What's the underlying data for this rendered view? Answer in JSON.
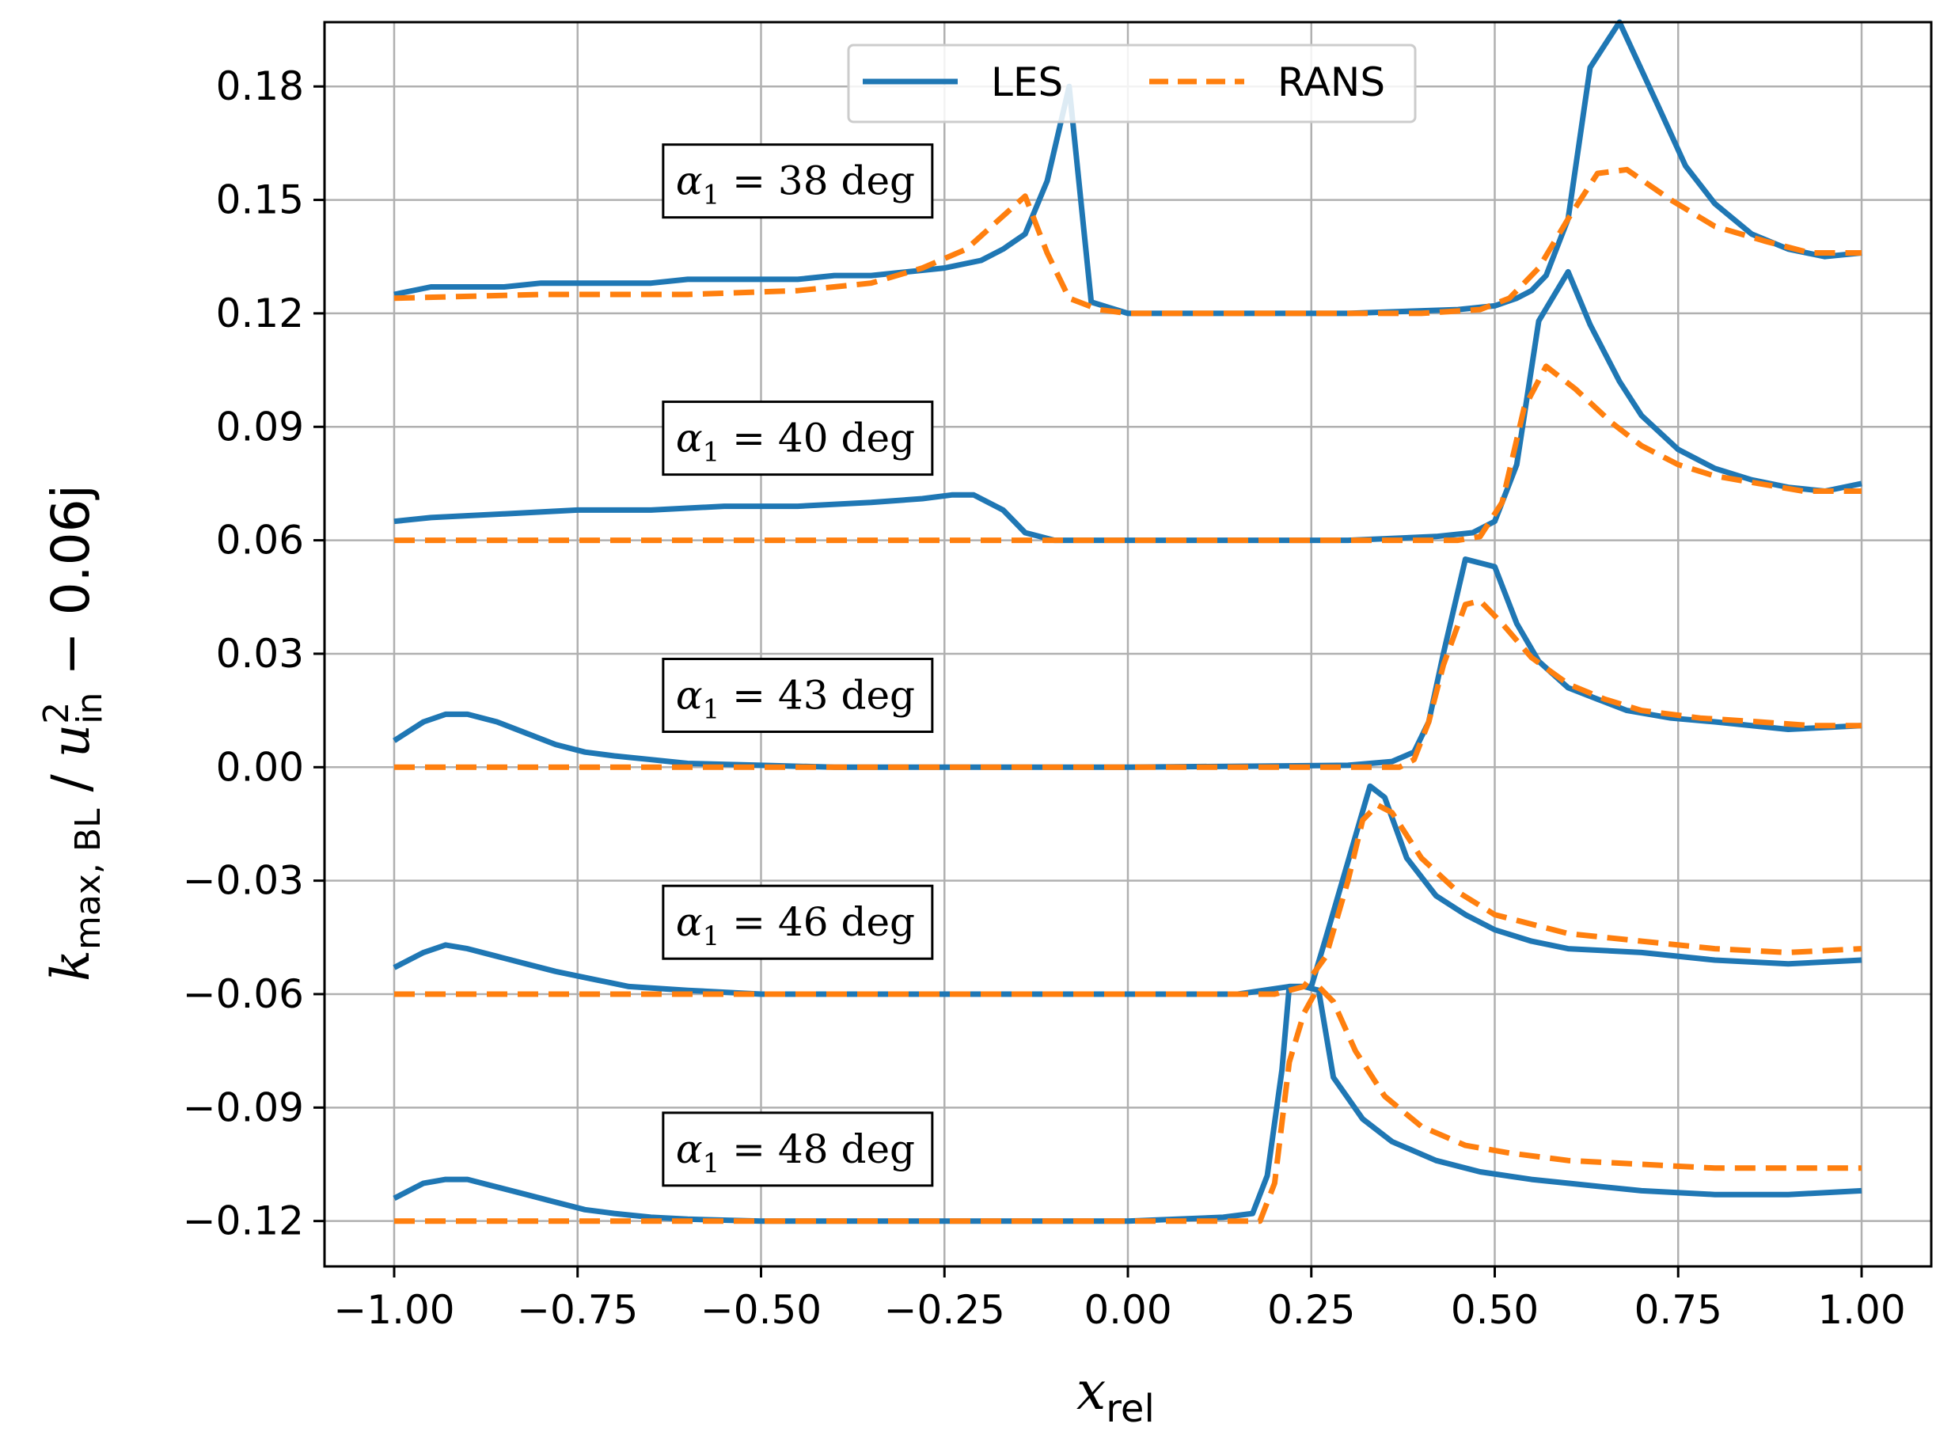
{
  "chart_data": {
    "type": "line",
    "x_axis": {
      "label_main": "x",
      "label_sub": "rel",
      "range": [
        -1.0,
        1.0
      ],
      "ticks": [
        -1.0,
        -0.75,
        -0.5,
        -0.25,
        0.0,
        0.25,
        0.5,
        0.75,
        1.0
      ],
      "tick_labels": [
        "−1.00",
        "−0.75",
        "−0.50",
        "−0.25",
        "0.00",
        "0.25",
        "0.50",
        "0.75",
        "1.00"
      ]
    },
    "y_axis": {
      "label_k": "k",
      "label_k_sub": "max, BL",
      "label_slash": " / ",
      "label_u": "u",
      "label_u_sup": "2",
      "label_u_sub": "in",
      "label_tail": " − 0.06j",
      "range": [
        -0.132,
        0.197
      ],
      "ticks": [
        -0.12,
        -0.09,
        -0.06,
        -0.03,
        0.0,
        0.03,
        0.06,
        0.09,
        0.12,
        0.15,
        0.18
      ],
      "tick_labels": [
        "−0.12",
        "−0.09",
        "−0.06",
        "−0.03",
        "0.00",
        "0.03",
        "0.06",
        "0.09",
        "0.12",
        "0.15",
        "0.18"
      ]
    },
    "grid": true,
    "legend": {
      "position": "top-center",
      "entries": [
        {
          "name": "LES",
          "color": "#1f77b4",
          "style": "solid"
        },
        {
          "name": "RANS",
          "color": "#ff7f0e",
          "style": "dashed"
        }
      ]
    },
    "annotations": [
      {
        "alpha_symbol": "α",
        "alpha_sub": "1",
        "text": " = 38 deg",
        "x": -0.45,
        "y": 0.155
      },
      {
        "alpha_symbol": "α",
        "alpha_sub": "1",
        "text": " = 40 deg",
        "x": -0.45,
        "y": 0.087
      },
      {
        "alpha_symbol": "α",
        "alpha_sub": "1",
        "text": " = 43 deg",
        "x": -0.45,
        "y": 0.019
      },
      {
        "alpha_symbol": "α",
        "alpha_sub": "1",
        "text": " = 46 deg",
        "x": -0.45,
        "y": -0.041
      },
      {
        "alpha_symbol": "α",
        "alpha_sub": "1",
        "text": " = 48 deg",
        "x": -0.45,
        "y": -0.101
      }
    ],
    "series": [
      {
        "name": "LES",
        "case": "38 deg",
        "color": "#1f77b4",
        "dashed": false,
        "x": [
          -1.0,
          -0.95,
          -0.9,
          -0.85,
          -0.8,
          -0.75,
          -0.7,
          -0.65,
          -0.6,
          -0.55,
          -0.5,
          -0.45,
          -0.4,
          -0.35,
          -0.3,
          -0.25,
          -0.2,
          -0.17,
          -0.14,
          -0.11,
          -0.08,
          -0.05,
          0.0,
          0.3,
          0.45,
          0.5,
          0.53,
          0.55,
          0.57,
          0.6,
          0.63,
          0.67,
          0.72,
          0.76,
          0.8,
          0.85,
          0.9,
          0.95,
          1.0
        ],
        "y": [
          0.125,
          0.127,
          0.127,
          0.127,
          0.128,
          0.128,
          0.128,
          0.128,
          0.129,
          0.129,
          0.129,
          0.129,
          0.13,
          0.13,
          0.131,
          0.132,
          0.134,
          0.137,
          0.141,
          0.155,
          0.18,
          0.123,
          0.12,
          0.12,
          0.121,
          0.122,
          0.124,
          0.126,
          0.13,
          0.145,
          0.185,
          0.197,
          0.176,
          0.159,
          0.149,
          0.141,
          0.137,
          0.135,
          0.136
        ]
      },
      {
        "name": "RANS",
        "case": "38 deg",
        "color": "#ff7f0e",
        "dashed": true,
        "x": [
          -1.0,
          -0.8,
          -0.6,
          -0.45,
          -0.35,
          -0.28,
          -0.22,
          -0.18,
          -0.14,
          -0.11,
          -0.08,
          -0.04,
          0.0,
          0.4,
          0.48,
          0.52,
          0.56,
          0.6,
          0.64,
          0.68,
          0.74,
          0.8,
          0.87,
          0.93,
          1.0
        ],
        "y": [
          0.124,
          0.125,
          0.125,
          0.126,
          0.128,
          0.132,
          0.137,
          0.144,
          0.151,
          0.136,
          0.124,
          0.121,
          0.12,
          0.12,
          0.121,
          0.124,
          0.132,
          0.145,
          0.157,
          0.158,
          0.15,
          0.143,
          0.139,
          0.136,
          0.136
        ]
      },
      {
        "name": "LES",
        "case": "40 deg",
        "color": "#1f77b4",
        "dashed": false,
        "x": [
          -1.0,
          -0.95,
          -0.85,
          -0.75,
          -0.65,
          -0.55,
          -0.45,
          -0.35,
          -0.28,
          -0.24,
          -0.21,
          -0.17,
          -0.14,
          -0.1,
          0.0,
          0.3,
          0.42,
          0.47,
          0.5,
          0.53,
          0.56,
          0.6,
          0.63,
          0.67,
          0.7,
          0.75,
          0.8,
          0.85,
          0.9,
          0.95,
          1.0
        ],
        "y": [
          0.065,
          0.066,
          0.067,
          0.068,
          0.068,
          0.069,
          0.069,
          0.07,
          0.071,
          0.072,
          0.072,
          0.068,
          0.062,
          0.06,
          0.06,
          0.06,
          0.061,
          0.062,
          0.065,
          0.08,
          0.118,
          0.131,
          0.117,
          0.102,
          0.093,
          0.084,
          0.079,
          0.076,
          0.074,
          0.073,
          0.075
        ]
      },
      {
        "name": "RANS",
        "case": "40 deg",
        "color": "#ff7f0e",
        "dashed": true,
        "x": [
          -1.0,
          0.45,
          0.48,
          0.51,
          0.54,
          0.57,
          0.61,
          0.66,
          0.7,
          0.75,
          0.8,
          0.86,
          0.92,
          1.0
        ],
        "y": [
          0.06,
          0.06,
          0.061,
          0.07,
          0.095,
          0.106,
          0.1,
          0.091,
          0.085,
          0.08,
          0.077,
          0.075,
          0.073,
          0.073
        ]
      },
      {
        "name": "LES",
        "case": "43 deg",
        "color": "#1f77b4",
        "dashed": false,
        "x": [
          -1.0,
          -0.96,
          -0.93,
          -0.9,
          -0.86,
          -0.82,
          -0.78,
          -0.74,
          -0.7,
          -0.65,
          -0.6,
          -0.5,
          -0.4,
          0.0,
          0.3,
          0.36,
          0.39,
          0.41,
          0.43,
          0.46,
          0.5,
          0.53,
          0.56,
          0.6,
          0.64,
          0.68,
          0.74,
          0.8,
          0.9,
          1.0
        ],
        "y": [
          0.007,
          0.012,
          0.014,
          0.014,
          0.012,
          0.009,
          0.006,
          0.004,
          0.003,
          0.002,
          0.001,
          0.0005,
          0.0,
          0.0,
          0.0005,
          0.0015,
          0.004,
          0.012,
          0.03,
          0.055,
          0.053,
          0.038,
          0.028,
          0.021,
          0.018,
          0.015,
          0.013,
          0.012,
          0.01,
          0.011
        ]
      },
      {
        "name": "RANS",
        "case": "43 deg",
        "color": "#ff7f0e",
        "dashed": true,
        "x": [
          -1.0,
          0.37,
          0.39,
          0.41,
          0.43,
          0.46,
          0.48,
          0.51,
          0.55,
          0.6,
          0.65,
          0.7,
          0.78,
          0.86,
          0.93,
          1.0
        ],
        "y": [
          0.0,
          0.0,
          0.002,
          0.012,
          0.027,
          0.043,
          0.044,
          0.038,
          0.029,
          0.022,
          0.018,
          0.015,
          0.013,
          0.012,
          0.011,
          0.011
        ]
      },
      {
        "name": "LES",
        "case": "46 deg",
        "color": "#1f77b4",
        "dashed": false,
        "x": [
          -1.0,
          -0.96,
          -0.93,
          -0.9,
          -0.86,
          -0.82,
          -0.78,
          -0.73,
          -0.68,
          -0.6,
          -0.5,
          -0.3,
          0.0,
          0.15,
          0.22,
          0.25,
          0.27,
          0.3,
          0.33,
          0.35,
          0.38,
          0.42,
          0.46,
          0.5,
          0.55,
          0.6,
          0.7,
          0.8,
          0.9,
          1.0
        ],
        "y": [
          -0.053,
          -0.049,
          -0.047,
          -0.048,
          -0.05,
          -0.052,
          -0.054,
          -0.056,
          -0.058,
          -0.059,
          -0.06,
          -0.06,
          -0.06,
          -0.06,
          -0.058,
          -0.058,
          -0.045,
          -0.025,
          -0.005,
          -0.008,
          -0.024,
          -0.034,
          -0.039,
          -0.043,
          -0.046,
          -0.048,
          -0.049,
          -0.051,
          -0.052,
          -0.051
        ]
      },
      {
        "name": "RANS",
        "case": "46 deg",
        "color": "#ff7f0e",
        "dashed": true,
        "x": [
          -1.0,
          0.2,
          0.24,
          0.27,
          0.3,
          0.32,
          0.34,
          0.36,
          0.4,
          0.45,
          0.5,
          0.6,
          0.7,
          0.8,
          0.9,
          1.0
        ],
        "y": [
          -0.06,
          -0.06,
          -0.058,
          -0.05,
          -0.03,
          -0.014,
          -0.01,
          -0.012,
          -0.024,
          -0.033,
          -0.039,
          -0.044,
          -0.046,
          -0.048,
          -0.049,
          -0.048
        ]
      },
      {
        "name": "LES",
        "case": "48 deg",
        "color": "#1f77b4",
        "dashed": false,
        "x": [
          -1.0,
          -0.96,
          -0.93,
          -0.9,
          -0.86,
          -0.82,
          -0.78,
          -0.74,
          -0.7,
          -0.65,
          -0.6,
          -0.5,
          -0.3,
          0.0,
          0.13,
          0.17,
          0.19,
          0.21,
          0.22,
          0.24,
          0.26,
          0.28,
          0.32,
          0.36,
          0.42,
          0.48,
          0.55,
          0.6,
          0.7,
          0.8,
          0.9,
          1.0
        ],
        "y": [
          -0.114,
          -0.11,
          -0.109,
          -0.109,
          -0.111,
          -0.113,
          -0.115,
          -0.117,
          -0.118,
          -0.119,
          -0.1195,
          -0.12,
          -0.12,
          -0.12,
          -0.119,
          -0.118,
          -0.108,
          -0.08,
          -0.058,
          -0.058,
          -0.059,
          -0.082,
          -0.093,
          -0.099,
          -0.104,
          -0.107,
          -0.109,
          -0.11,
          -0.112,
          -0.113,
          -0.113,
          -0.112
        ]
      },
      {
        "name": "RANS",
        "case": "48 deg",
        "color": "#ff7f0e",
        "dashed": true,
        "x": [
          -1.0,
          0.18,
          0.2,
          0.22,
          0.24,
          0.26,
          0.28,
          0.31,
          0.35,
          0.4,
          0.46,
          0.52,
          0.6,
          0.7,
          0.8,
          0.9,
          1.0
        ],
        "y": [
          -0.12,
          -0.12,
          -0.11,
          -0.078,
          -0.065,
          -0.058,
          -0.062,
          -0.075,
          -0.087,
          -0.095,
          -0.1,
          -0.102,
          -0.104,
          -0.105,
          -0.106,
          -0.106,
          -0.106
        ]
      }
    ]
  }
}
